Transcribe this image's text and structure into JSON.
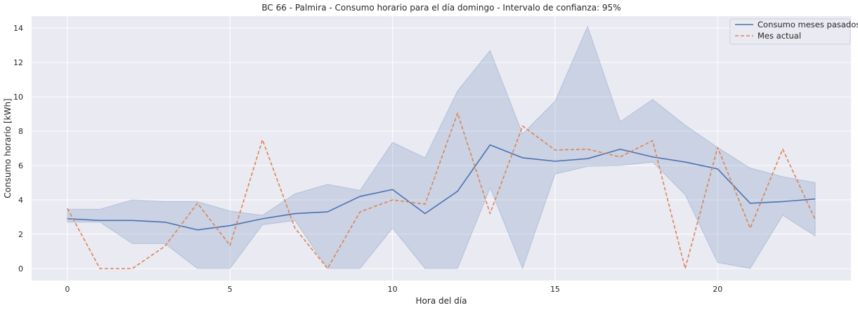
{
  "chart_data": {
    "type": "line",
    "title": "BC 66 - Palmira - Consumo horario para el día domingo - Intervalo de confianza: 95%",
    "xlabel": "Hora del día",
    "ylabel": "Consumo horario [kWh]",
    "xlim": [
      -1.1,
      24.1
    ],
    "ylim": [
      -0.7,
      14.7
    ],
    "xticks": [
      0,
      5,
      10,
      15,
      20
    ],
    "yticks": [
      0,
      2,
      4,
      6,
      8,
      10,
      12,
      14
    ],
    "grid": true,
    "legend_position": "top-right",
    "x": [
      0,
      1,
      2,
      3,
      4,
      5,
      6,
      7,
      8,
      9,
      10,
      11,
      12,
      13,
      14,
      15,
      16,
      17,
      18,
      19,
      20,
      21,
      22,
      23
    ],
    "series": [
      {
        "name": "Consumo meses pasados",
        "color": "#4c72b0",
        "style": "solid",
        "values": [
          2.9,
          2.8,
          2.8,
          2.7,
          2.25,
          2.5,
          2.9,
          3.2,
          3.3,
          4.2,
          4.6,
          3.2,
          4.5,
          7.2,
          6.45,
          6.25,
          6.4,
          6.95,
          6.5,
          6.2,
          5.8,
          3.8,
          3.9,
          4.05
        ],
        "ci_lower": [
          2.7,
          2.7,
          1.45,
          1.45,
          0.0,
          0.0,
          2.55,
          2.8,
          0.0,
          0.0,
          2.35,
          0.0,
          0.0,
          4.7,
          0.0,
          5.5,
          5.95,
          6.0,
          6.2,
          4.3,
          0.35,
          0.0,
          3.1,
          1.9
        ],
        "ci_upper": [
          3.45,
          3.45,
          4.0,
          3.9,
          3.9,
          3.35,
          3.1,
          4.35,
          4.9,
          4.55,
          7.35,
          6.45,
          10.35,
          12.7,
          7.85,
          9.75,
          14.1,
          8.55,
          9.85,
          8.35,
          7.05,
          5.85,
          5.35,
          5.0
        ]
      },
      {
        "name": "Mes actual",
        "color": "#dd8452",
        "style": "dashed",
        "values": [
          3.5,
          0.0,
          0.0,
          1.3,
          3.8,
          1.35,
          7.5,
          2.35,
          0.0,
          3.3,
          4.0,
          3.75,
          9.05,
          3.2,
          8.3,
          6.9,
          6.95,
          6.5,
          7.45,
          0.0,
          7.05,
          2.35,
          6.95,
          2.85
        ]
      }
    ]
  }
}
